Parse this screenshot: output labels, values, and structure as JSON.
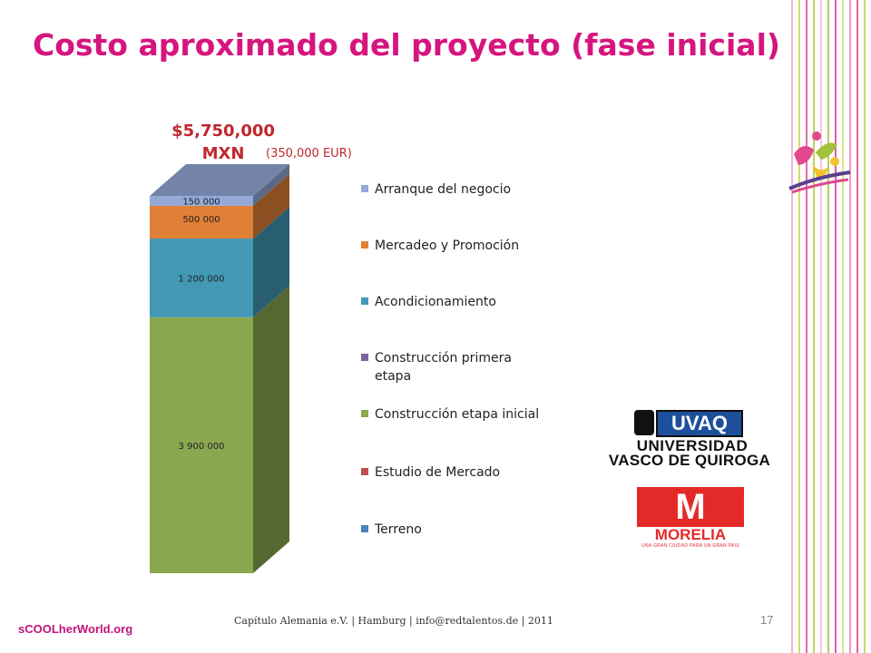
{
  "slide": {
    "title": "Costo aproximado del proyecto (fase inicial)",
    "footer": "Capítulo Alemania e.V. | Hamburg | info@redtalentos.de | 2011",
    "brand": "sCOOLherWorld.org",
    "page_number": "17"
  },
  "logos": {
    "uvaq_badge": "UVAQ",
    "uvaq_line1": "UNIVERSIDAD",
    "uvaq_line2": "VASCO DE QUIROGA",
    "morelia_mark": "M",
    "morelia_word": "MORELIA",
    "morelia_tagline": "UNA GRAN CIUDAD PARA UN GRAN PAIS"
  },
  "chart_data": {
    "type": "bar",
    "stacked": true,
    "three_d": true,
    "title": "",
    "total_label": "$5,750,000 MXN",
    "subtitle": "(350,000 EUR)",
    "categories": [
      ""
    ],
    "series": [
      {
        "name": "Terreno",
        "values": [
          0
        ],
        "color": "#4f81bd",
        "data_label": ""
      },
      {
        "name": "Estudio de Mercado",
        "values": [
          0
        ],
        "color": "#c0504d",
        "data_label": ""
      },
      {
        "name": "Construcción etapa inicial",
        "values": [
          3900000
        ],
        "color": "#8aa84f",
        "data_label": "3 900 000"
      },
      {
        "name": "Construcción primera etapa",
        "values": [
          0
        ],
        "color": "#7c64a0",
        "data_label": ""
      },
      {
        "name": "Acondicionamiento",
        "values": [
          1200000
        ],
        "color": "#4298b5",
        "data_label": "1 200 000"
      },
      {
        "name": "Mercadeo y Promoción",
        "values": [
          500000
        ],
        "color": "#e07f36",
        "data_label": "500 000"
      },
      {
        "name": "Arranque del negocio",
        "values": [
          150000
        ],
        "color": "#94a9d8",
        "data_label": "150 000"
      }
    ],
    "legend": {
      "position": "right",
      "order": [
        "Arranque del negocio",
        "Mercadeo y Promoción",
        "Acondicionamiento",
        "Construcción primera etapa",
        "Construcción etapa inicial",
        "Estudio de Mercado",
        "Terreno"
      ]
    },
    "grid": false,
    "show_axes": false
  },
  "colors": {
    "title": "#d6157e",
    "total": "#c0272d",
    "deco_lines": [
      "#f0a3c9",
      "#c8d24a",
      "#e1468f",
      "#b0c93a",
      "#f7b9d6",
      "#a4c23a",
      "#d9348a",
      "#cfe07a",
      "#ec82b6",
      "#e23a8c",
      "#bcd04e"
    ]
  }
}
